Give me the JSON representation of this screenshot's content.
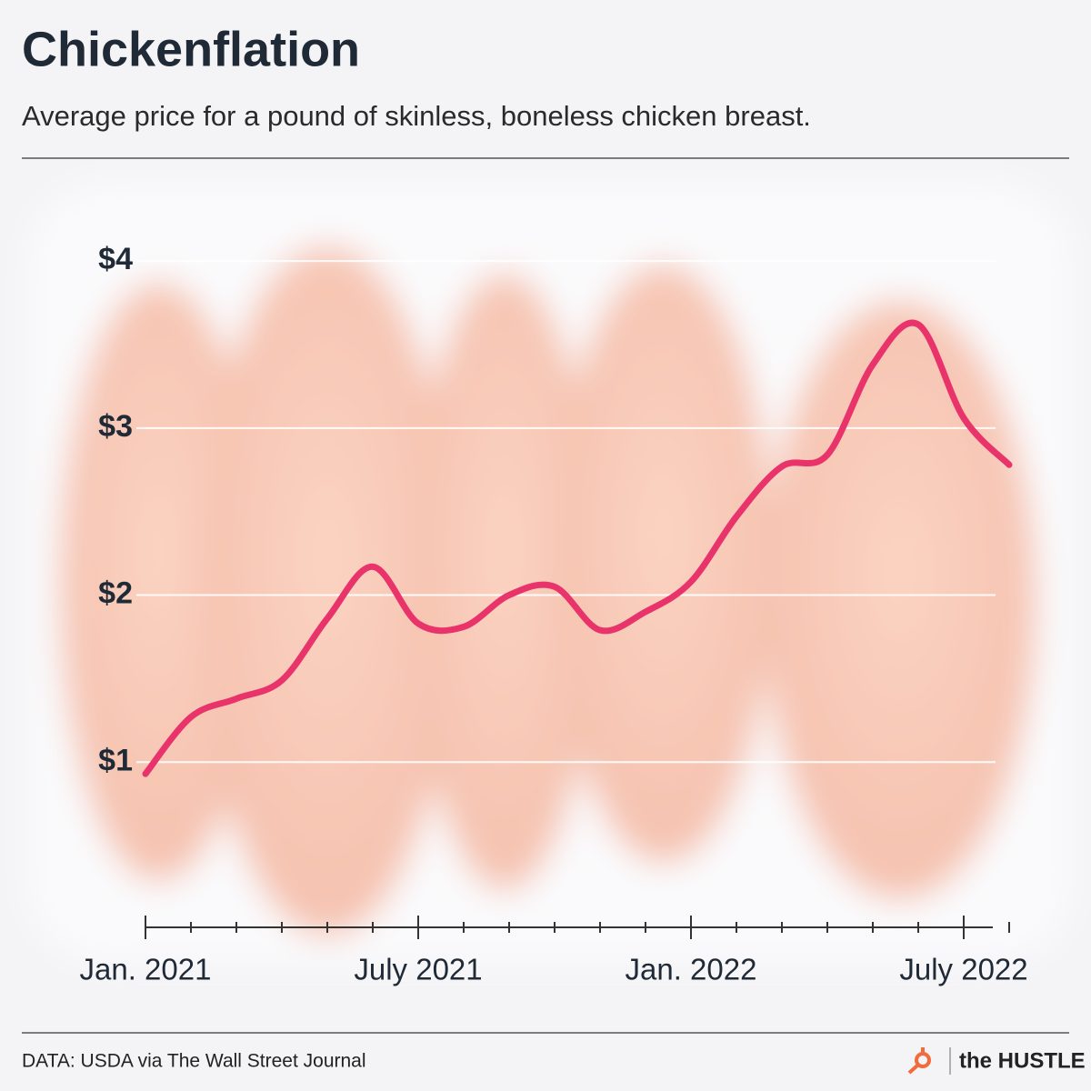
{
  "chart_data": {
    "type": "line",
    "title": "Chickenflation",
    "subtitle": "Average price for a pound of skinless, boneless chicken breast.",
    "source": "DATA: USDA via The Wall Street Journal",
    "brand": "the HUSTLE",
    "x": [
      "2021-01",
      "2021-02",
      "2021-03",
      "2021-04",
      "2021-05",
      "2021-06",
      "2021-07",
      "2021-08",
      "2021-09",
      "2021-10",
      "2021-11",
      "2021-12",
      "2022-01",
      "2022-02",
      "2022-03",
      "2022-04",
      "2022-05",
      "2022-06",
      "2022-07",
      "2022-08"
    ],
    "series": [
      {
        "name": "Average price",
        "color": "#e8346a",
        "values": [
          0.93,
          1.27,
          1.38,
          1.49,
          1.86,
          2.17,
          1.83,
          1.81,
          2.0,
          2.05,
          1.79,
          1.9,
          2.08,
          2.47,
          2.77,
          2.84,
          3.38,
          3.62,
          3.06,
          2.78
        ]
      }
    ],
    "xlim": [
      "2021-01",
      "2022-08"
    ],
    "xticks": [
      {
        "value": "2021-01",
        "label": "Jan. 2021"
      },
      {
        "value": "2021-07",
        "label": "July 2021"
      },
      {
        "value": "2022-01",
        "label": "Jan. 2022"
      },
      {
        "value": "2022-07",
        "label": "July 2022"
      }
    ],
    "ylim": [
      0,
      4.3
    ],
    "yticks": [
      {
        "value": 1,
        "label": "$1"
      },
      {
        "value": 2,
        "label": "$2"
      },
      {
        "value": 3,
        "label": "$3"
      },
      {
        "value": 4,
        "label": "$4"
      }
    ],
    "grid": true
  }
}
